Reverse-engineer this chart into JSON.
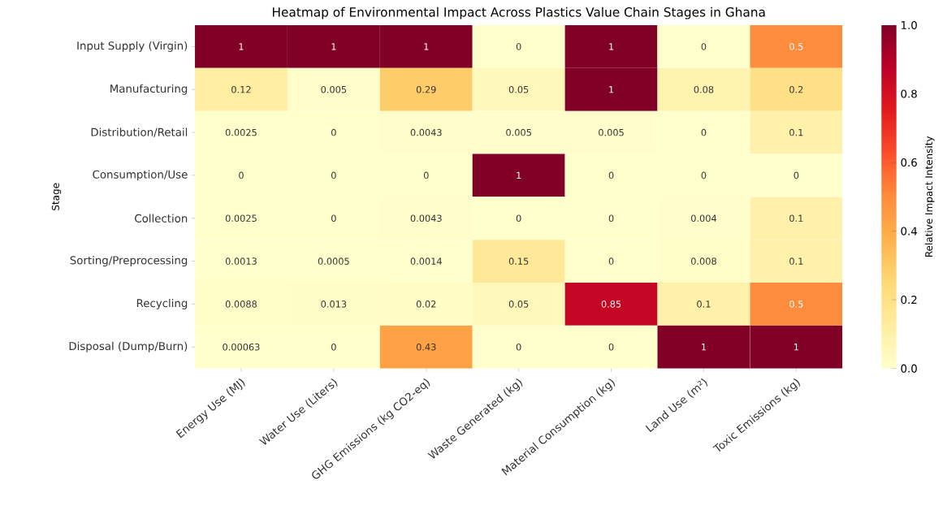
{
  "chart_data": {
    "type": "heatmap",
    "title": "Heatmap of Environmental Impact Across Plastics Value Chain Stages in Ghana",
    "ylabel": "Stage",
    "clabel": "Relative Impact Intensity",
    "categories": [
      "Energy Use (MJ)",
      "Water Use (Liters)",
      "GHG Emissions (kg CO2-eq)",
      "Waste Generated (kg)",
      "Material Consumption (kg)",
      "Land Use (m²)",
      "Toxic Emissions (kg)"
    ],
    "y_categories": [
      "Input Supply (Virgin)",
      "Manufacturing",
      "Distribution/Retail",
      "Consumption/Use",
      "Collection",
      "Sorting/Preprocessing",
      "Recycling",
      "Disposal (Dump/Burn)"
    ],
    "cells": [
      [
        1,
        1,
        1,
        0,
        1,
        0,
        0.5
      ],
      [
        0.12,
        0.005,
        0.29,
        0.05,
        1,
        0.08,
        0.2
      ],
      [
        0.0025,
        0,
        0.0043,
        0.005,
        0.005,
        0,
        0.1
      ],
      [
        0,
        0,
        0,
        1,
        0,
        0,
        0
      ],
      [
        0.0025,
        0,
        0.0043,
        0,
        0,
        0.004,
        0.1
      ],
      [
        0.0013,
        0.0005,
        0.0014,
        0.15,
        0,
        0.008,
        0.1
      ],
      [
        0.0088,
        0.013,
        0.02,
        0.05,
        0.85,
        0.1,
        0.5
      ],
      [
        0.00063,
        0,
        0.43,
        0,
        0,
        1,
        1
      ]
    ],
    "data_labels": true,
    "clim": [
      0,
      1
    ],
    "cticks": [
      {
        "value": 0,
        "label": "0.0"
      },
      {
        "value": 0.2,
        "label": "0.2"
      },
      {
        "value": 0.4,
        "label": "0.4"
      },
      {
        "value": 0.6,
        "label": "0.6"
      },
      {
        "value": 0.8,
        "label": "0.8"
      },
      {
        "value": 1,
        "label": "1.0"
      }
    ]
  }
}
